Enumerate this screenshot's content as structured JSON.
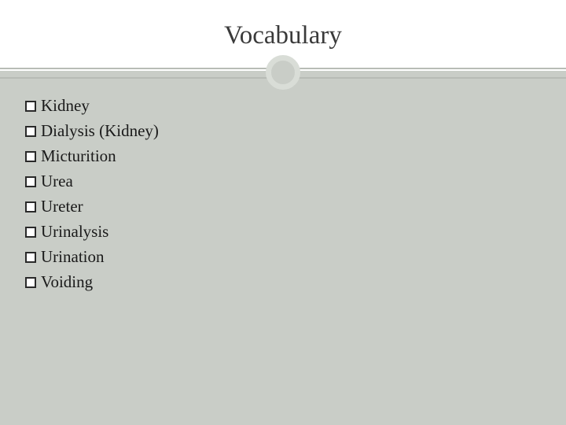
{
  "slide": {
    "title": "Vocabulary",
    "background_color": "#c9cdc7",
    "header_bg": "#ffffff",
    "rule_color": "#b8bcb6",
    "circle_border": "#d9ddd7",
    "title_fontsize": 33,
    "item_fontsize": 21,
    "bullet_type": "hollow-square",
    "items": [
      {
        "label": "Kidney"
      },
      {
        "label": "Dialysis (Kidney)"
      },
      {
        "label": "Micturition"
      },
      {
        "label": "Urea"
      },
      {
        "label": "Ureter"
      },
      {
        "label": "Urinalysis"
      },
      {
        "label": "Urination"
      },
      {
        "label": "Voiding"
      }
    ]
  }
}
